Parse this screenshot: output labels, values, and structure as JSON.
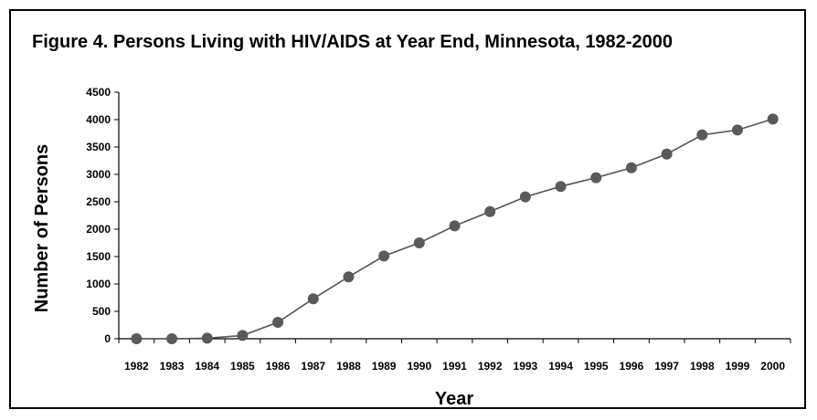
{
  "chart_data": {
    "type": "line",
    "title": "Figure 4.  Persons Living with HIV/AIDS at Year End, Minnesota, 1982-2000",
    "xlabel": "Year",
    "ylabel": "Number of Persons",
    "categories": [
      "1982",
      "1983",
      "1984",
      "1985",
      "1986",
      "1987",
      "1988",
      "1989",
      "1990",
      "1991",
      "1992",
      "1993",
      "1994",
      "1995",
      "1996",
      "1997",
      "1998",
      "1999",
      "2000"
    ],
    "series": [
      {
        "values": [
          0,
          0,
          10,
          60,
          300,
          730,
          1130,
          1510,
          1750,
          2060,
          2320,
          2590,
          2780,
          2940,
          3120,
          3370,
          3720,
          3810,
          4010
        ]
      }
    ],
    "yticks": [
      "0",
      "500",
      "1000",
      "1500",
      "2000",
      "2500",
      "3000",
      "3500",
      "4000",
      "4500"
    ],
    "ylim": [
      0,
      4500
    ],
    "grid": false,
    "legend": "none",
    "colors": {
      "line": "#555555",
      "marker": "#5a5a5a"
    }
  }
}
